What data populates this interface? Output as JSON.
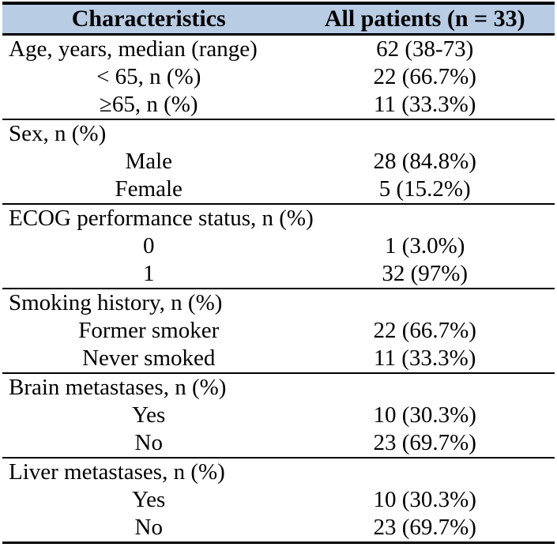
{
  "table": {
    "header_bg": "#b8cce4",
    "border_color": "#000000",
    "columns": [
      "Characteristics",
      "All patients (n = 33)"
    ],
    "rows": [
      {
        "label": "Age, years, median (range)",
        "value": "62 (38-73)"
      },
      {
        "label": "< 65, n (%)",
        "value": "22 (66.7%)"
      },
      {
        "label": "≥65, n (%)",
        "value": "11 (33.3%)"
      },
      {
        "label": "Sex, n (%)",
        "value": ""
      },
      {
        "label": "Male",
        "value": "28 (84.8%)"
      },
      {
        "label": "Female",
        "value": "5 (15.2%)"
      },
      {
        "label": "ECOG performance status, n (%)",
        "value": ""
      },
      {
        "label": "0",
        "value": "1 (3.0%)"
      },
      {
        "label": "1",
        "value": "32 (97%)"
      },
      {
        "label": "Smoking history, n (%)",
        "value": ""
      },
      {
        "label": "Former smoker",
        "value": "22 (66.7%)"
      },
      {
        "label": "Never smoked",
        "value": "11 (33.3%)"
      },
      {
        "label": "Brain metastases, n (%)",
        "value": ""
      },
      {
        "label": "Yes",
        "value": "10 (30.3%)"
      },
      {
        "label": "No",
        "value": "23 (69.7%)"
      },
      {
        "label": "Liver metastases, n (%)",
        "value": ""
      },
      {
        "label": "Yes",
        "value": "10 (30.3%)"
      },
      {
        "label": "No",
        "value": "23 (69.7%)"
      }
    ]
  }
}
